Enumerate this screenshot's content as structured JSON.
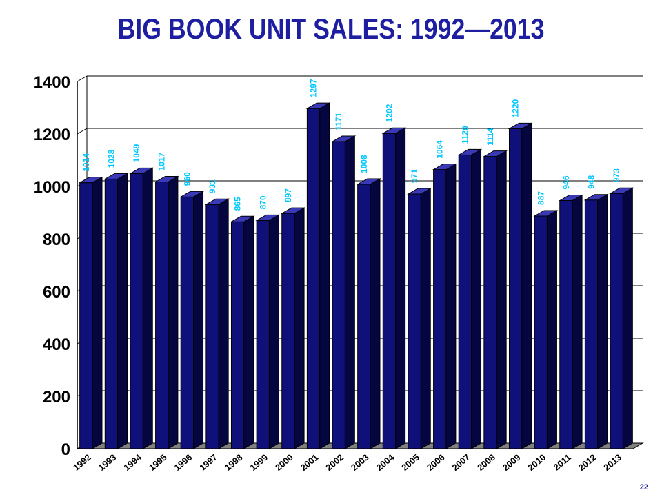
{
  "page": {
    "number": "22"
  },
  "colors": {
    "title": "#1e1ea0",
    "bar_front": "#10107a",
    "bar_side": "#050540",
    "bar_top": "#3a3ab8",
    "label": "#00c8ff",
    "floor": "#808080",
    "grid": "#000000"
  },
  "chart_data": {
    "type": "bar",
    "title": "BIG BOOK UNIT SALES:  1992—2013",
    "xlabel": "",
    "ylabel": "",
    "ylim": [
      0,
      1400
    ],
    "yticks": [
      "0",
      "200",
      "400",
      "600",
      "800",
      "1000",
      "1200",
      "1400"
    ],
    "ytick_values": [
      0,
      200,
      400,
      600,
      800,
      1000,
      1200,
      1400
    ],
    "grid": true,
    "style": "3d",
    "categories": [
      "1992",
      "1993",
      "1994",
      "1995",
      "1996",
      "1997",
      "1998",
      "1999",
      "2000",
      "2001",
      "2002",
      "2003",
      "2004",
      "2005",
      "2006",
      "2007",
      "2008",
      "2009",
      "2010",
      "2011",
      "2012",
      "2013"
    ],
    "values": [
      1014,
      1028,
      1049,
      1017,
      960,
      931,
      865,
      870,
      897,
      1297,
      1171,
      1008,
      1202,
      971,
      1064,
      1120,
      1114,
      1220,
      887,
      946,
      948,
      973
    ],
    "data_labels": [
      "1014",
      "1028",
      "1049",
      "1017",
      "960",
      "931",
      "865",
      "870",
      "897",
      "1297",
      "1171",
      "1008",
      "1202",
      "971",
      "1064",
      "1120",
      "1114",
      "1220",
      "887",
      "946",
      "948",
      "973"
    ]
  }
}
